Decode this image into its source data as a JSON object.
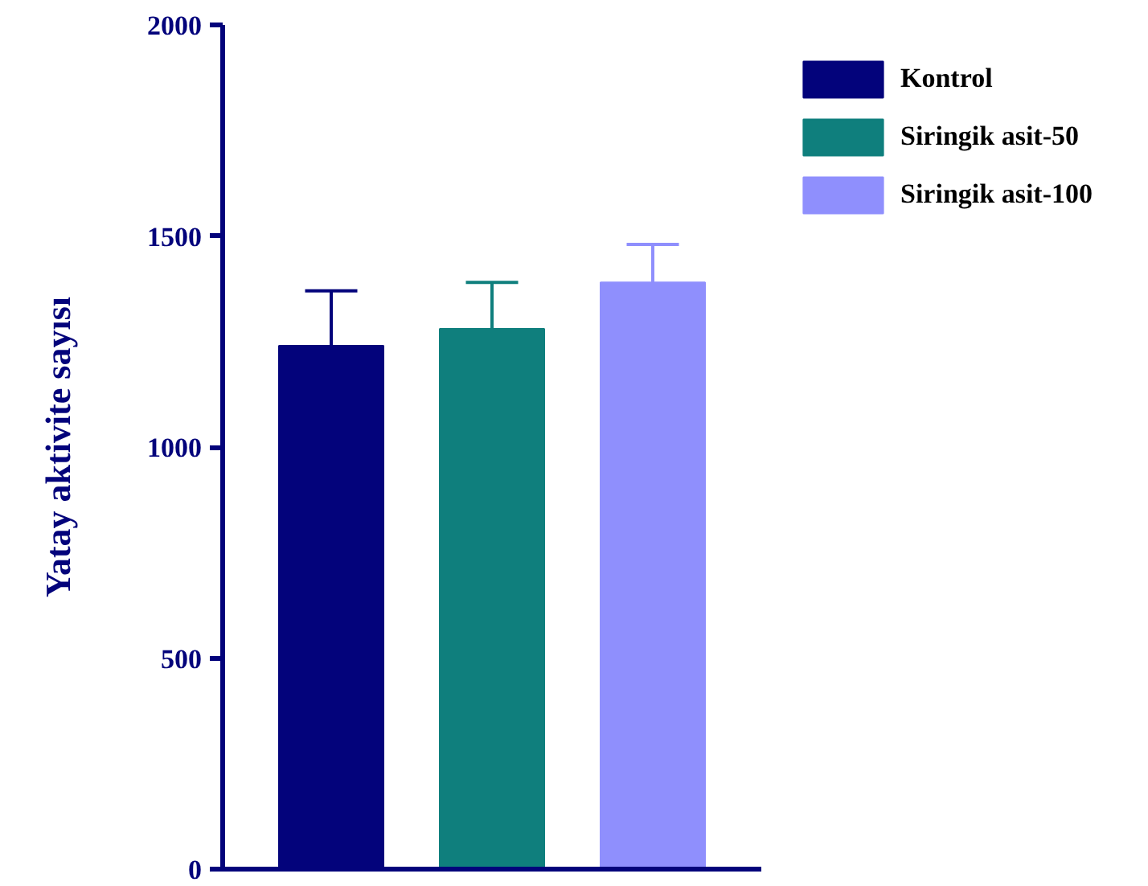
{
  "chart_data": {
    "type": "bar",
    "ylabel": "Yatay aktivite sayısı",
    "categories": [
      null,
      null,
      null
    ],
    "series": [
      {
        "name": "Kontrol",
        "color": "#03037b",
        "values": [
          1240,
          null,
          null
        ],
        "errors": [
          [
            1240,
            1370
          ],
          null,
          null
        ]
      },
      {
        "name": "Siringik asit-50",
        "color": "#0f7f7d",
        "values": [
          null,
          1280,
          null
        ],
        "errors": [
          null,
          [
            1280,
            1390
          ],
          null
        ]
      },
      {
        "name": "Siringik asit-100",
        "color": "#8f8ffd",
        "values": [
          null,
          null,
          1390
        ],
        "errors": [
          null,
          null,
          [
            1390,
            1480
          ]
        ]
      }
    ],
    "ylim": [
      0,
      2000
    ],
    "yticks": [
      0,
      500,
      1000,
      1500,
      2000
    ],
    "grid": false,
    "legend": "top right",
    "tick_labels": "y"
  }
}
